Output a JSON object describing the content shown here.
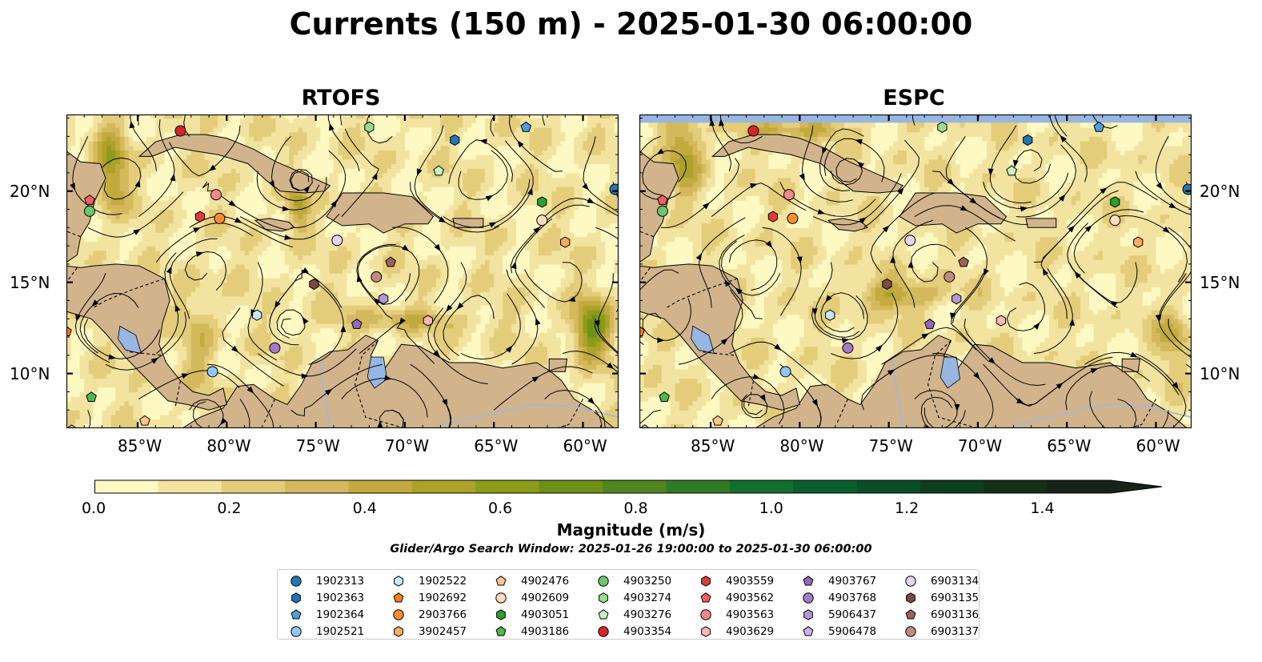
{
  "title": "Currents (150 m) - 2025-01-30 06:00:00",
  "panels": [
    {
      "title": "RTOFS",
      "variant": "rtofs"
    },
    {
      "title": "ESPC",
      "variant": "espc"
    }
  ],
  "map": {
    "lon_range": [
      -89,
      -58
    ],
    "lat_range": [
      7,
      24.2
    ],
    "lon_ticks": [
      "85°W",
      "80°W",
      "75°W",
      "70°W",
      "65°W",
      "60°W"
    ],
    "lon_tick_values": [
      -85,
      -80,
      -75,
      -70,
      -65,
      -60
    ],
    "lat_ticks": [
      "20°N",
      "15°N",
      "10°N"
    ],
    "lat_tick_values": [
      20,
      15,
      10
    ],
    "colors": {
      "land": "#d2b48c",
      "ocean": "#97b6e1",
      "streamline": "#000000"
    }
  },
  "colorbar": {
    "label": "Magnitude (m/s)",
    "range": [
      0,
      1.5
    ],
    "ticks": [
      "0.0",
      "0.2",
      "0.4",
      "0.6",
      "0.8",
      "1.0",
      "1.2",
      "1.4"
    ],
    "tick_values": [
      0,
      0.2,
      0.4,
      0.6,
      0.8,
      1.0,
      1.2,
      1.4
    ],
    "colors": [
      "#fef8c2",
      "#f2e4a0",
      "#e3cd7a",
      "#d3b95b",
      "#c3aa3f",
      "#aca22a",
      "#8d9b1b",
      "#6e9017",
      "#4f861d",
      "#307c25",
      "#136f2d",
      "#09602d",
      "#0a4f27",
      "#0f3f21",
      "#142f1a",
      "#17221a"
    ],
    "extend": "max"
  },
  "search_window": "Glider/Argo Search Window: 2025-01-26 19:00:00 to 2025-01-30 06:00:00",
  "legend": [
    {
      "id": "1902313",
      "color": "#1f77b4",
      "marker": "circle"
    },
    {
      "id": "1902363",
      "color": "#1f77b4",
      "marker": "hexagon"
    },
    {
      "id": "1902364",
      "color": "#4e9fdc",
      "marker": "pentagon"
    },
    {
      "id": "1902521",
      "color": "#8fc7f0",
      "marker": "circle"
    },
    {
      "id": "1902522",
      "color": "#c6e6fa",
      "marker": "hexagon"
    },
    {
      "id": "1902692",
      "color": "#ff7f0e",
      "marker": "pentagon"
    },
    {
      "id": "2903766",
      "color": "#ff8c2a",
      "marker": "circle"
    },
    {
      "id": "3902457",
      "color": "#ffaa5e",
      "marker": "hexagon"
    },
    {
      "id": "4902476",
      "color": "#ffc48f",
      "marker": "pentagon"
    },
    {
      "id": "4902609",
      "color": "#ffdcbd",
      "marker": "circle"
    },
    {
      "id": "4903051",
      "color": "#2ca02c",
      "marker": "hexagon"
    },
    {
      "id": "4903186",
      "color": "#4cb94c",
      "marker": "pentagon"
    },
    {
      "id": "4903250",
      "color": "#6cc66c",
      "marker": "circle"
    },
    {
      "id": "4903274",
      "color": "#98df8a",
      "marker": "hexagon"
    },
    {
      "id": "4903276",
      "color": "#c8f2c0",
      "marker": "pentagon"
    },
    {
      "id": "4903354",
      "color": "#d62728",
      "marker": "circle"
    },
    {
      "id": "4903559",
      "color": "#e3393a",
      "marker": "hexagon"
    },
    {
      "id": "4903562",
      "color": "#f06060",
      "marker": "pentagon"
    },
    {
      "id": "4903563",
      "color": "#f28a8a",
      "marker": "circle"
    },
    {
      "id": "4903629",
      "color": "#f8b8b8",
      "marker": "hexagon"
    },
    {
      "id": "4903767",
      "color": "#9467bd",
      "marker": "pentagon"
    },
    {
      "id": "4903768",
      "color": "#a27cc9",
      "marker": "circle"
    },
    {
      "id": "5906437",
      "color": "#b796d6",
      "marker": "hexagon"
    },
    {
      "id": "5906478",
      "color": "#cdb3e6",
      "marker": "pentagon"
    },
    {
      "id": "6903134",
      "color": "#e8d3f5",
      "marker": "circle"
    },
    {
      "id": "6903135",
      "color": "#7b4a3f",
      "marker": "hexagon"
    },
    {
      "id": "6903136",
      "color": "#9a6355",
      "marker": "pentagon"
    },
    {
      "id": "6903137",
      "color": "#c08a7e",
      "marker": "circle"
    }
  ],
  "floats": [
    {
      "id": "1902313",
      "lon": -58.2,
      "lat": 20.1,
      "lon_espc": -58.2,
      "lat_espc": 20.1
    },
    {
      "id": "1902363",
      "lon": -67.2,
      "lat": 22.8,
      "lon_espc": -67.2,
      "lat_espc": 22.8
    },
    {
      "id": "1902364",
      "lon": -63.2,
      "lat": 23.5,
      "lon_espc": -63.2,
      "lat_espc": 23.5
    },
    {
      "id": "1902521",
      "lon": -80.8,
      "lat": 10.1,
      "lon_espc": -80.8,
      "lat_espc": 10.1
    },
    {
      "id": "1902522",
      "lon": -78.3,
      "lat": 13.2,
      "lon_espc": -78.3,
      "lat_espc": 13.2
    },
    {
      "id": "1902692",
      "lon": -89.0,
      "lat": 12.3,
      "lon_espc": -89.0,
      "lat_espc": 12.3
    },
    {
      "id": "2903766",
      "lon": -80.4,
      "lat": 18.5,
      "lon_espc": -80.4,
      "lat_espc": 18.5
    },
    {
      "id": "3902457",
      "lon": -61.0,
      "lat": 17.2,
      "lon_espc": -61.0,
      "lat_espc": 17.2
    },
    {
      "id": "4902476",
      "lon": -84.6,
      "lat": 7.4,
      "lon_espc": -84.6,
      "lat_espc": 7.4
    },
    {
      "id": "4902609",
      "lon": -62.3,
      "lat": 18.4,
      "lon_espc": -62.3,
      "lat_espc": 18.4
    },
    {
      "id": "4903051",
      "lon": -62.3,
      "lat": 19.4,
      "lon_espc": -62.3,
      "lat_espc": 19.4
    },
    {
      "id": "4903186",
      "lon": -87.6,
      "lat": 8.7,
      "lon_espc": -87.6,
      "lat_espc": 8.7
    },
    {
      "id": "4903250",
      "lon": -87.7,
      "lat": 18.9,
      "lon_espc": -87.7,
      "lat_espc": 18.9
    },
    {
      "id": "4903274",
      "lon": -72.0,
      "lat": 23.5,
      "lon_espc": -72.0,
      "lat_espc": 23.5
    },
    {
      "id": "4903276",
      "lon": -68.1,
      "lat": 21.1,
      "lon_espc": -68.1,
      "lat_espc": 21.1
    },
    {
      "id": "4903354",
      "lon": -82.6,
      "lat": 23.3,
      "lon_espc": -82.6,
      "lat_espc": 23.3
    },
    {
      "id": "4903559",
      "lon": -81.5,
      "lat": 18.6,
      "lon_espc": -81.5,
      "lat_espc": 18.6
    },
    {
      "id": "4903562",
      "lon": -87.7,
      "lat": 19.5,
      "lon_espc": -87.7,
      "lat_espc": 19.5
    },
    {
      "id": "4903563",
      "lon": -80.6,
      "lat": 19.8,
      "lon_espc": -80.6,
      "lat_espc": 19.8
    },
    {
      "id": "4903629",
      "lon": -68.7,
      "lat": 12.9,
      "lon_espc": -68.7,
      "lat_espc": 12.9
    },
    {
      "id": "4903767",
      "lon": -72.7,
      "lat": 12.7,
      "lon_espc": -72.7,
      "lat_espc": 12.7
    },
    {
      "id": "4903768",
      "lon": -77.3,
      "lat": 11.4,
      "lon_espc": -77.3,
      "lat_espc": 11.4
    },
    {
      "id": "5906437",
      "lon": -71.2,
      "lat": 14.1,
      "lon_espc": -71.2,
      "lat_espc": 14.1
    },
    {
      "id": "5906478",
      "lon": -88.7,
      "lat": 6.9,
      "lon_espc": -88.7,
      "lat_espc": 6.9
    },
    {
      "id": "6903134",
      "lon": -73.8,
      "lat": 17.3,
      "lon_espc": -73.8,
      "lat_espc": 17.3
    },
    {
      "id": "6903135",
      "lon": -75.1,
      "lat": 14.9,
      "lon_espc": -75.1,
      "lat_espc": 14.9
    },
    {
      "id": "6903136",
      "lon": -70.8,
      "lat": 16.1,
      "lon_espc": -70.8,
      "lat_espc": 16.1
    },
    {
      "id": "6903137",
      "lon": -71.6,
      "lat": 15.3,
      "lon_espc": -71.6,
      "lat_espc": 15.3
    }
  ]
}
